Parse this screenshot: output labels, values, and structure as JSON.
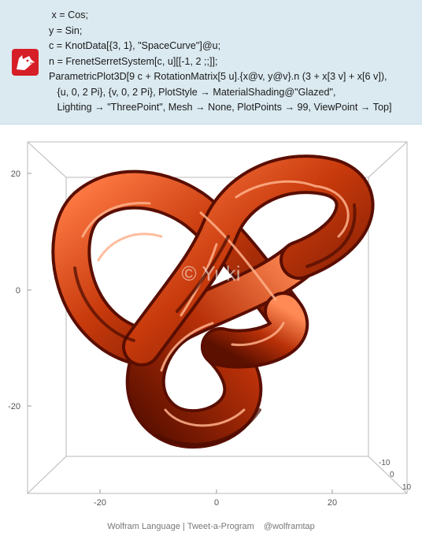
{
  "code_lines": [
    " x = Cos;",
    "y = Sin;",
    "c = KnotData[{3, 1}, \"SpaceCurve\"]@u;",
    "n = FrenetSerretSystem[c, u][[-1, 2 ;;]];",
    "ParametricPlot3D[9 c + RotationMatrix[5 u].{x@v, y@v}.n (3 + x[3 v] + x[6 v]),",
    "   {u, 0, 2 Pi}, {v, 0, 2 Pi}, PlotStyle → MaterialShading@\"Glazed\",",
    "   Lighting → \"ThreePoint\", Mesh → None, PlotPoints → 99, ViewPoint → Top]"
  ],
  "plot": {
    "y_ticks": [
      "20",
      "0",
      "-20"
    ],
    "x_ticks": [
      "-20",
      "0",
      "20"
    ],
    "z_ticks": [
      "-10",
      "0",
      "10"
    ],
    "watermark": "© Yuki",
    "surface_color": "#c83a0c"
  },
  "footer": {
    "brand": "Wolfram Language",
    "separator": "|",
    "program": "Tweet-a-Program",
    "handle": "@wolframtap"
  }
}
